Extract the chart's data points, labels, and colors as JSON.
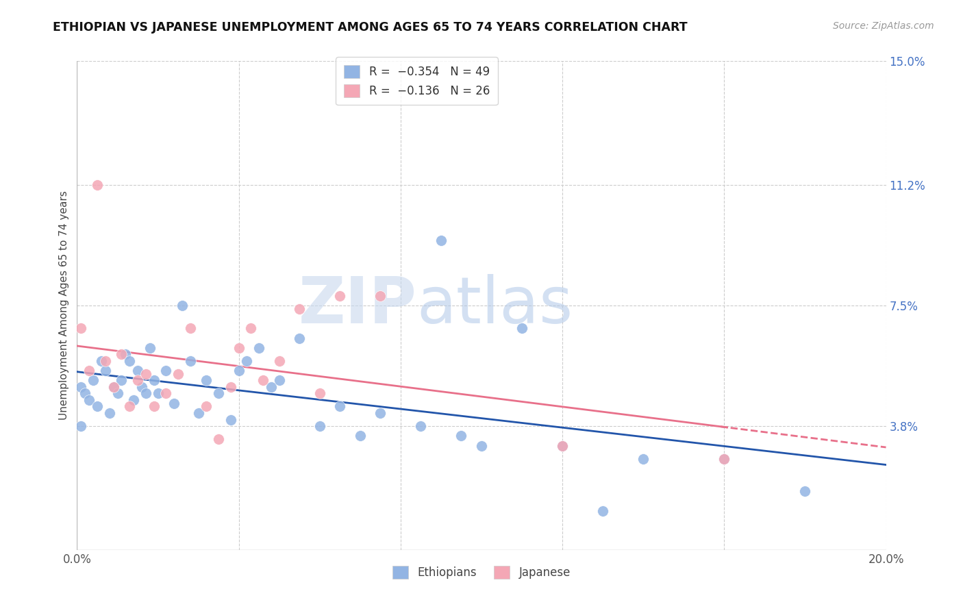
{
  "title": "ETHIOPIAN VS JAPANESE UNEMPLOYMENT AMONG AGES 65 TO 74 YEARS CORRELATION CHART",
  "source": "Source: ZipAtlas.com",
  "ylabel": "Unemployment Among Ages 65 to 74 years",
  "xlim": [
    0.0,
    0.2
  ],
  "ylim": [
    0.0,
    0.15
  ],
  "xtick_vals": [
    0.0,
    0.04,
    0.08,
    0.12,
    0.16,
    0.2
  ],
  "xtick_labels": [
    "0.0%",
    "",
    "",
    "",
    "",
    "20.0%"
  ],
  "ytick_vals_right": [
    0.15,
    0.112,
    0.075,
    0.038,
    0.0
  ],
  "ytick_labels_right": [
    "15.0%",
    "11.2%",
    "7.5%",
    "3.8%",
    ""
  ],
  "ethiopian_color": "#92b4e3",
  "japanese_color": "#f4a7b5",
  "ethiopian_line_color": "#2255aa",
  "japanese_line_color": "#e8708a",
  "background_color": "#ffffff",
  "ethiopian_x": [
    0.001,
    0.002,
    0.003,
    0.004,
    0.005,
    0.006,
    0.007,
    0.008,
    0.009,
    0.01,
    0.011,
    0.012,
    0.013,
    0.014,
    0.015,
    0.016,
    0.017,
    0.018,
    0.019,
    0.02,
    0.022,
    0.024,
    0.026,
    0.028,
    0.03,
    0.032,
    0.035,
    0.038,
    0.04,
    0.042,
    0.045,
    0.048,
    0.05,
    0.055,
    0.06,
    0.065,
    0.07,
    0.075,
    0.085,
    0.09,
    0.095,
    0.1,
    0.11,
    0.12,
    0.13,
    0.14,
    0.16,
    0.18,
    0.001
  ],
  "ethiopian_y": [
    0.05,
    0.048,
    0.046,
    0.052,
    0.044,
    0.058,
    0.055,
    0.042,
    0.05,
    0.048,
    0.052,
    0.06,
    0.058,
    0.046,
    0.055,
    0.05,
    0.048,
    0.062,
    0.052,
    0.048,
    0.055,
    0.045,
    0.075,
    0.058,
    0.042,
    0.052,
    0.048,
    0.04,
    0.055,
    0.058,
    0.062,
    0.05,
    0.052,
    0.065,
    0.038,
    0.044,
    0.035,
    0.042,
    0.038,
    0.095,
    0.035,
    0.032,
    0.068,
    0.032,
    0.012,
    0.028,
    0.028,
    0.018,
    0.038
  ],
  "japanese_x": [
    0.001,
    0.003,
    0.005,
    0.007,
    0.009,
    0.011,
    0.013,
    0.015,
    0.017,
    0.019,
    0.022,
    0.025,
    0.028,
    0.032,
    0.035,
    0.038,
    0.04,
    0.043,
    0.046,
    0.05,
    0.055,
    0.06,
    0.065,
    0.075,
    0.12,
    0.16
  ],
  "japanese_y": [
    0.068,
    0.055,
    0.112,
    0.058,
    0.05,
    0.06,
    0.044,
    0.052,
    0.054,
    0.044,
    0.048,
    0.054,
    0.068,
    0.044,
    0.034,
    0.05,
    0.062,
    0.068,
    0.052,
    0.058,
    0.074,
    0.048,
    0.078,
    0.078,
    0.032,
    0.028
  ],
  "watermark_zip": "ZIP",
  "watermark_atlas": "atlas"
}
